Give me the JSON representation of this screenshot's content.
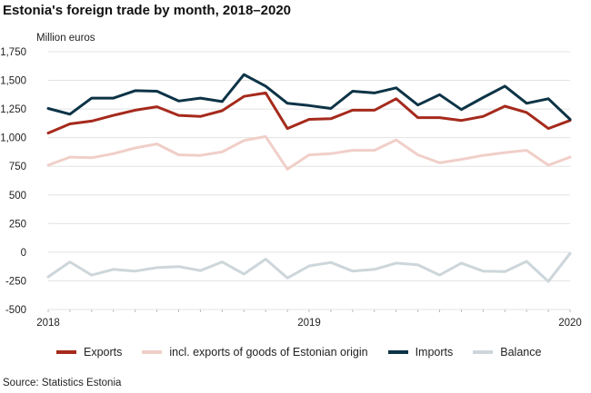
{
  "title": "Estonia's foreign trade by month, 2018–2020",
  "source": "Source: Statistics Estonia",
  "colors": {
    "exports": "#a52a1c",
    "origin": "#f0cfc8",
    "imports": "#0d3346",
    "balance": "#cdd6da",
    "grid": "#e3e3e3"
  },
  "chart_data": {
    "type": "line",
    "title": "Estonia's foreign trade by month, 2018–2020",
    "ylabel": "Million euros",
    "xlabel": "",
    "ylim": [
      -500,
      1750
    ],
    "yticks": [
      -500,
      -250,
      0,
      250,
      500,
      750,
      1000,
      1250,
      1500,
      1750
    ],
    "ytick_labels": [
      "-500",
      "-250",
      "0",
      "250",
      "500",
      "750",
      "1,000",
      "1,250",
      "1,500",
      "1,750"
    ],
    "x": [
      "2018-01",
      "2018-02",
      "2018-03",
      "2018-04",
      "2018-05",
      "2018-06",
      "2018-07",
      "2018-08",
      "2018-09",
      "2018-10",
      "2018-11",
      "2018-12",
      "2019-01",
      "2019-02",
      "2019-03",
      "2019-04",
      "2019-05",
      "2019-06",
      "2019-07",
      "2019-08",
      "2019-09",
      "2019-10",
      "2019-11",
      "2019-12",
      "2020-01"
    ],
    "xticks": [
      {
        "at": "2018-01",
        "label": "2018"
      },
      {
        "at": "2019-01",
        "label": "2019"
      },
      {
        "at": "2020-01",
        "label": "2020"
      }
    ],
    "grid": true,
    "legend_position": "bottom",
    "series": [
      {
        "name": "Exports",
        "color_key": "exports",
        "values": [
          1040,
          1120,
          1145,
          1195,
          1240,
          1270,
          1195,
          1185,
          1235,
          1360,
          1390,
          1080,
          1160,
          1165,
          1240,
          1240,
          1340,
          1175,
          1175,
          1150,
          1185,
          1275,
          1220,
          1080,
          1150
        ]
      },
      {
        "name": "incl. exports of goods of Estonian origin",
        "color_key": "origin",
        "values": [
          760,
          830,
          825,
          860,
          910,
          945,
          850,
          845,
          875,
          975,
          1010,
          725,
          850,
          860,
          890,
          890,
          980,
          850,
          780,
          810,
          845,
          870,
          890,
          760,
          830
        ]
      },
      {
        "name": "Imports",
        "color_key": "imports",
        "values": [
          1255,
          1205,
          1345,
          1345,
          1410,
          1405,
          1320,
          1345,
          1315,
          1550,
          1450,
          1300,
          1280,
          1255,
          1405,
          1390,
          1435,
          1285,
          1375,
          1245,
          1350,
          1450,
          1300,
          1340,
          1160
        ]
      },
      {
        "name": "Balance",
        "color_key": "balance",
        "values": [
          -215,
          -85,
          -200,
          -150,
          -165,
          -135,
          -125,
          -160,
          -85,
          -190,
          -60,
          -225,
          -120,
          -90,
          -165,
          -150,
          -95,
          -110,
          -200,
          -95,
          -165,
          -170,
          -80,
          -255,
          -10
        ]
      }
    ]
  }
}
